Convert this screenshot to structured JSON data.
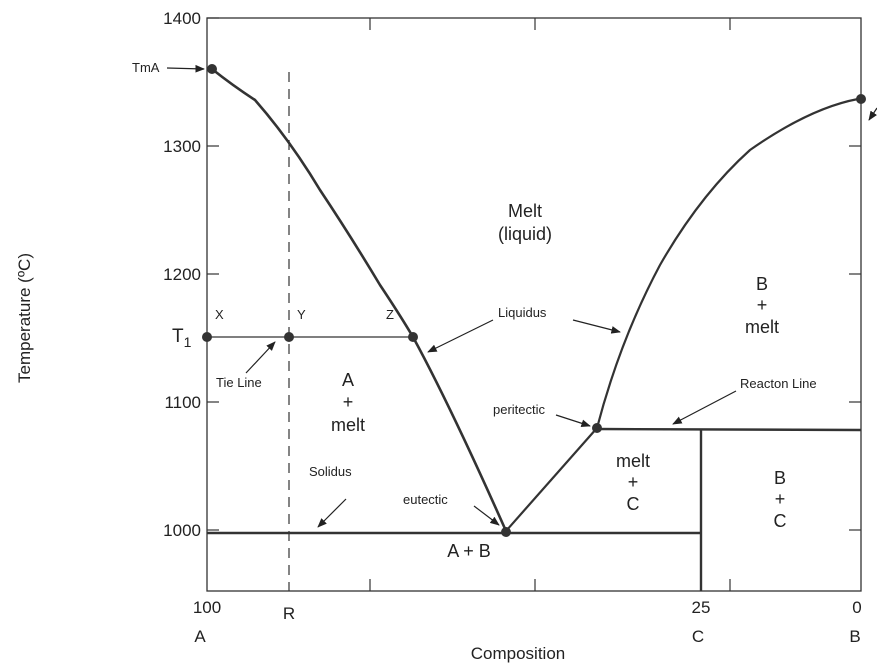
{
  "axis": {
    "ylabel": "Temperature (ºC)",
    "xlabel": "Composition",
    "yticks": [
      "1400",
      "1300",
      "1200",
      "1100",
      "1000"
    ],
    "xticks_top": [
      "100",
      "25",
      "0"
    ],
    "xticks_bottom": [
      "A",
      "R",
      "C",
      "B"
    ],
    "t1_label": "T",
    "t1_sub": "1"
  },
  "points": {
    "x": "X",
    "y": "Y",
    "z": "Z",
    "tma": "TmA"
  },
  "labels": {
    "tie_line": "Tie Line",
    "solidus": "Solidus",
    "liquidus": "Liquidus",
    "eutectic": "eutectic",
    "peritectic": "peritectic",
    "reaction_line": "Reacton Line"
  },
  "phases": {
    "melt": [
      "Melt",
      "(liquid)"
    ],
    "a_melt": [
      "A",
      "+",
      "melt"
    ],
    "b_melt": [
      "B",
      "+",
      "melt"
    ],
    "melt_c": [
      "melt",
      "+",
      "C"
    ],
    "b_c": [
      "B",
      "+",
      "C"
    ],
    "a_b": "A + B"
  }
}
